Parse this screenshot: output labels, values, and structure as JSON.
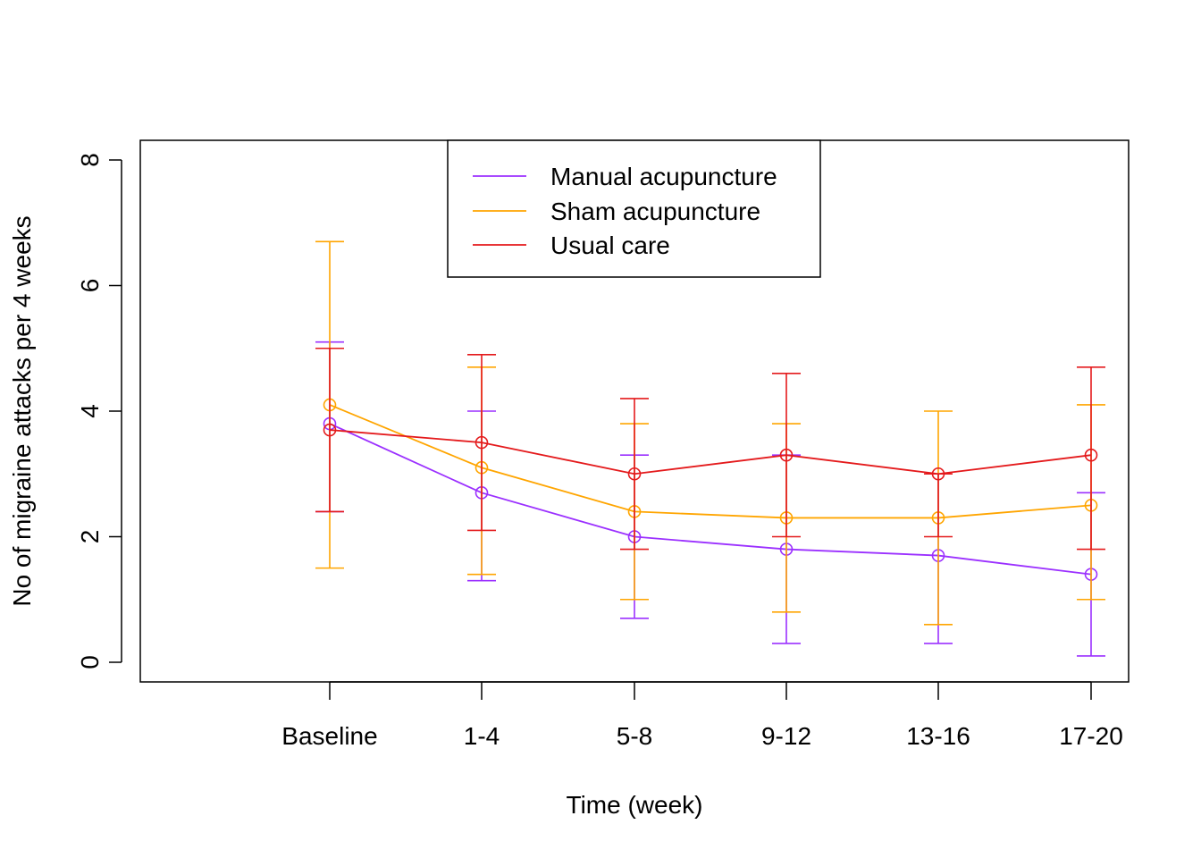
{
  "chart_data": {
    "type": "line",
    "title": "",
    "xlabel": "Time (week)",
    "ylabel": "No of migraine attacks per 4 weeks",
    "categories": [
      "Baseline",
      "1-4",
      "5-8",
      "9-12",
      "13-16",
      "17-20"
    ],
    "ylim": [
      0,
      8
    ],
    "yticks": [
      0,
      2,
      4,
      6,
      8
    ],
    "grid": false,
    "legend_position": "top-center",
    "series": [
      {
        "name": "Manual acupuncture",
        "color": "#9B30FF",
        "values": [
          3.8,
          2.7,
          2.0,
          1.8,
          1.7,
          1.4
        ],
        "lower": [
          2.4,
          1.3,
          0.7,
          0.3,
          0.3,
          0.1
        ],
        "upper": [
          5.1,
          4.0,
          3.3,
          3.3,
          3.0,
          2.7
        ]
      },
      {
        "name": "Sham acupuncture",
        "color": "#FFA500",
        "values": [
          4.1,
          3.1,
          2.4,
          2.3,
          2.3,
          2.5
        ],
        "lower": [
          1.5,
          1.4,
          1.0,
          0.8,
          0.6,
          1.0
        ],
        "upper": [
          6.7,
          4.7,
          3.8,
          3.8,
          4.0,
          4.1
        ]
      },
      {
        "name": "Usual care",
        "color": "#E41A1C",
        "values": [
          3.7,
          3.5,
          3.0,
          3.3,
          3.0,
          3.3
        ],
        "lower": [
          2.4,
          2.1,
          1.8,
          2.0,
          2.0,
          1.8
        ],
        "upper": [
          5.0,
          4.9,
          4.2,
          4.6,
          3.0,
          4.7
        ]
      }
    ]
  }
}
